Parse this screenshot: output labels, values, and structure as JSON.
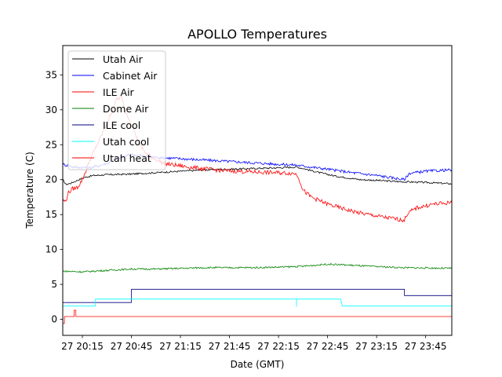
{
  "chart_data": {
    "type": "line",
    "title": "APOLLO Temperatures",
    "xlabel": "Date (GMT)",
    "ylabel": "Temperature (C)",
    "x_unit": "minutes since 20:00 GMT on the 27th",
    "xlim": [
      3,
      241
    ],
    "ylim": [
      -2.3,
      39.2
    ],
    "x_ticks": [
      {
        "value": 15,
        "label": "27 20:15"
      },
      {
        "value": 45,
        "label": "27 20:45"
      },
      {
        "value": 75,
        "label": "27 21:15"
      },
      {
        "value": 105,
        "label": "27 21:45"
      },
      {
        "value": 135,
        "label": "27 22:15"
      },
      {
        "value": 165,
        "label": "27 22:45"
      },
      {
        "value": 195,
        "label": "27 23:15"
      },
      {
        "value": 225,
        "label": "27 23:45"
      }
    ],
    "y_ticks": [
      {
        "value": 0,
        "label": "0"
      },
      {
        "value": 5,
        "label": "5"
      },
      {
        "value": 10,
        "label": "10"
      },
      {
        "value": 15,
        "label": "15"
      },
      {
        "value": 20,
        "label": "20"
      },
      {
        "value": 25,
        "label": "25"
      },
      {
        "value": 30,
        "label": "30"
      },
      {
        "value": 35,
        "label": "35"
      }
    ],
    "legend_position": "top-left",
    "series": [
      {
        "name": "Utah Air",
        "color": "#000000",
        "noise": 0.12,
        "points": [
          [
            3,
            20.0
          ],
          [
            5,
            19.3
          ],
          [
            8,
            19.5
          ],
          [
            12,
            19.9
          ],
          [
            16,
            20.3
          ],
          [
            22,
            20.6
          ],
          [
            30,
            20.7
          ],
          [
            45,
            20.8
          ],
          [
            60,
            21.0
          ],
          [
            75,
            21.2
          ],
          [
            90,
            21.4
          ],
          [
            105,
            21.5
          ],
          [
            120,
            21.6
          ],
          [
            135,
            21.7
          ],
          [
            146,
            21.8
          ],
          [
            150,
            21.6
          ],
          [
            160,
            21.0
          ],
          [
            170,
            20.5
          ],
          [
            185,
            20.0
          ],
          [
            195,
            19.9
          ],
          [
            210,
            19.7
          ],
          [
            225,
            19.6
          ],
          [
            241,
            19.4
          ]
        ]
      },
      {
        "name": "Cabinet Air",
        "color": "#0000ff",
        "noise": 0.2,
        "points": [
          [
            3,
            22.2
          ],
          [
            10,
            21.8
          ],
          [
            20,
            21.7
          ],
          [
            30,
            22.3
          ],
          [
            35,
            23.0
          ],
          [
            45,
            23.6
          ],
          [
            60,
            23.2
          ],
          [
            75,
            23.0
          ],
          [
            90,
            22.8
          ],
          [
            105,
            22.6
          ],
          [
            120,
            22.4
          ],
          [
            135,
            22.2
          ],
          [
            145,
            22.1
          ],
          [
            155,
            21.8
          ],
          [
            165,
            21.5
          ],
          [
            180,
            21.0
          ],
          [
            195,
            20.6
          ],
          [
            212,
            20.0
          ],
          [
            215,
            20.9
          ],
          [
            225,
            21.2
          ],
          [
            241,
            21.4
          ]
        ]
      },
      {
        "name": "ILE Air",
        "color": "#ff0000",
        "noise": 0.3,
        "points": [
          [
            3,
            17.0
          ],
          [
            5,
            16.9
          ],
          [
            6,
            18.0
          ],
          [
            9,
            18.7
          ],
          [
            12,
            18.9
          ],
          [
            15,
            20.0
          ],
          [
            20,
            23.0
          ],
          [
            26,
            26.0
          ],
          [
            31,
            28.5
          ],
          [
            36,
            31.5
          ],
          [
            39,
            31.8
          ],
          [
            41,
            30.0
          ],
          [
            45,
            28.0
          ],
          [
            50,
            25.0
          ],
          [
            55,
            23.5
          ],
          [
            65,
            22.3
          ],
          [
            80,
            21.8
          ],
          [
            100,
            21.3
          ],
          [
            120,
            21.1
          ],
          [
            145,
            20.9
          ],
          [
            147,
            20.5
          ],
          [
            150,
            18.5
          ],
          [
            155,
            17.5
          ],
          [
            165,
            16.5
          ],
          [
            175,
            15.8
          ],
          [
            185,
            15.2
          ],
          [
            200,
            14.6
          ],
          [
            212,
            14.2
          ],
          [
            214,
            15.2
          ],
          [
            220,
            16.0
          ],
          [
            230,
            16.5
          ],
          [
            241,
            16.7
          ]
        ]
      },
      {
        "name": "Dome Air",
        "color": "#008000",
        "noise": 0.12,
        "points": [
          [
            3,
            6.9
          ],
          [
            15,
            6.8
          ],
          [
            30,
            7.0
          ],
          [
            45,
            7.2
          ],
          [
            60,
            7.2
          ],
          [
            75,
            7.3
          ],
          [
            90,
            7.4
          ],
          [
            105,
            7.4
          ],
          [
            120,
            7.4
          ],
          [
            140,
            7.5
          ],
          [
            150,
            7.6
          ],
          [
            160,
            7.8
          ],
          [
            165,
            7.9
          ],
          [
            175,
            7.8
          ],
          [
            190,
            7.6
          ],
          [
            210,
            7.4
          ],
          [
            241,
            7.3
          ]
        ]
      },
      {
        "name": "ILE cool",
        "color": "#000080",
        "noise": 0,
        "points": [
          [
            3,
            2.4
          ],
          [
            45,
            2.4
          ],
          [
            45,
            4.3
          ],
          [
            212,
            4.3
          ],
          [
            212,
            3.4
          ],
          [
            241,
            3.4
          ]
        ]
      },
      {
        "name": "Utah cool",
        "color": "#00ffff",
        "noise": 0,
        "points": [
          [
            3,
            1.9
          ],
          [
            23,
            1.9
          ],
          [
            23,
            2.9
          ],
          [
            146,
            2.9
          ],
          [
            146,
            1.8
          ],
          [
            146,
            2.9
          ],
          [
            173,
            2.9
          ],
          [
            174,
            1.9
          ],
          [
            241,
            1.9
          ]
        ]
      },
      {
        "name": "Utah heat",
        "color": "#ff0000",
        "noise": 0,
        "points": [
          [
            3,
            0.4
          ],
          [
            3,
            -0.6
          ],
          [
            4,
            -0.6
          ],
          [
            4,
            0.4
          ],
          [
            10,
            0.4
          ],
          [
            10,
            1.3
          ],
          [
            11,
            1.3
          ],
          [
            11,
            0.4
          ],
          [
            241,
            0.4
          ]
        ]
      }
    ]
  }
}
